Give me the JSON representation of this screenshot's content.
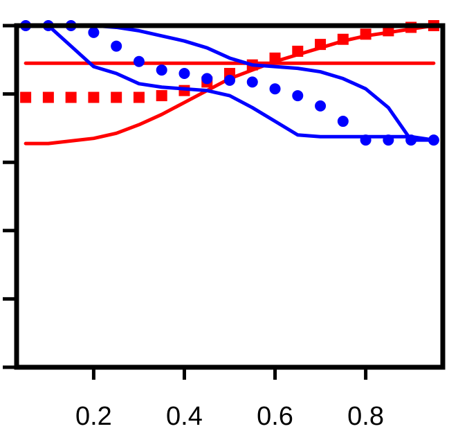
{
  "chart_data": {
    "type": "line",
    "title": "",
    "xlabel": "",
    "ylabel": "",
    "xlim": [
      0.03,
      0.97
    ],
    "ylim": [
      0,
      1
    ],
    "grid": false,
    "x_ticks": [
      0.2,
      0.4,
      0.6,
      0.8
    ],
    "x_tick_labels": [
      "0.2",
      "0.4",
      "0.6",
      "0.8"
    ],
    "y_ticks": [
      0,
      0.2,
      0.4,
      0.6,
      0.8,
      1.0
    ],
    "colors": {
      "red": "#ff0000",
      "blue": "#0000ff"
    },
    "series": [
      {
        "color": "red",
        "style": "solid",
        "x": [
          0.05,
          0.95
        ],
        "y": [
          0.89,
          0.89
        ]
      },
      {
        "color": "red",
        "style": "solid",
        "x": [
          0.05,
          0.1,
          0.2,
          0.25,
          0.3,
          0.35,
          0.4,
          0.45,
          0.5,
          0.55,
          0.6,
          0.65,
          0.7,
          0.75,
          0.8,
          0.85,
          0.9,
          0.95
        ],
        "y": [
          0.655,
          0.655,
          0.67,
          0.685,
          0.71,
          0.74,
          0.775,
          0.81,
          0.845,
          0.87,
          0.895,
          0.915,
          0.935,
          0.955,
          0.97,
          0.98,
          0.99,
          1.0
        ]
      },
      {
        "color": "red",
        "style": "squares",
        "x": [
          0.05,
          0.1,
          0.15,
          0.2,
          0.25,
          0.3,
          0.35,
          0.4,
          0.45,
          0.5,
          0.55,
          0.6,
          0.65,
          0.7,
          0.75,
          0.8,
          0.85,
          0.9,
          0.95
        ],
        "y": [
          0.79,
          0.79,
          0.79,
          0.79,
          0.79,
          0.79,
          0.795,
          0.81,
          0.835,
          0.86,
          0.885,
          0.905,
          0.925,
          0.945,
          0.96,
          0.975,
          0.985,
          0.995,
          1.0
        ]
      },
      {
        "color": "blue",
        "style": "solid",
        "x": [
          0.05,
          0.1,
          0.15,
          0.2,
          0.25,
          0.3,
          0.35,
          0.4,
          0.45,
          0.5,
          0.55,
          0.6,
          0.65,
          0.7,
          0.75,
          0.8,
          0.85,
          0.9,
          0.95
        ],
        "y": [
          1.0,
          1.0,
          1.0,
          1.0,
          0.995,
          0.985,
          0.97,
          0.955,
          0.935,
          0.905,
          0.885,
          0.88,
          0.875,
          0.865,
          0.845,
          0.815,
          0.76,
          0.665,
          0.665
        ]
      },
      {
        "color": "blue",
        "style": "solid",
        "x": [
          0.05,
          0.1,
          0.15,
          0.2,
          0.25,
          0.3,
          0.35,
          0.4,
          0.45,
          0.5,
          0.55,
          0.6,
          0.65,
          0.7,
          0.75,
          0.8,
          0.85,
          0.9,
          0.95
        ],
        "y": [
          1.0,
          1.0,
          0.94,
          0.88,
          0.86,
          0.83,
          0.82,
          0.815,
          0.81,
          0.795,
          0.76,
          0.72,
          0.68,
          0.675,
          0.675,
          0.675,
          0.675,
          0.675,
          0.665
        ]
      },
      {
        "color": "blue",
        "style": "dots",
        "x": [
          0.05,
          0.1,
          0.15,
          0.2,
          0.25,
          0.3,
          0.35,
          0.4,
          0.45,
          0.5,
          0.55,
          0.6,
          0.65,
          0.7,
          0.75,
          0.8,
          0.85,
          0.9,
          0.95
        ],
        "y": [
          1.0,
          1.0,
          1.0,
          0.98,
          0.94,
          0.895,
          0.87,
          0.86,
          0.845,
          0.84,
          0.835,
          0.815,
          0.795,
          0.765,
          0.72,
          0.665,
          0.665,
          0.665,
          0.665
        ]
      }
    ]
  }
}
